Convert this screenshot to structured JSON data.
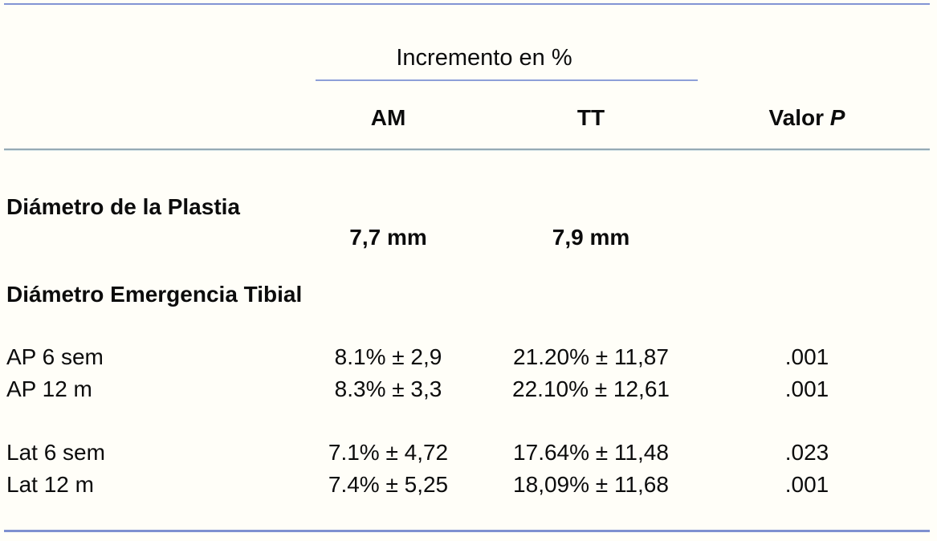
{
  "document": {
    "kind": "journal-table",
    "language": "es"
  },
  "table": {
    "group_header": "Incremento en %",
    "column_headers": {
      "am": "AM",
      "tt": "TT",
      "valor": "Valor",
      "p": "P"
    },
    "rows": [
      {
        "label": "Diámetro de la Plastia",
        "am": "",
        "tt": "",
        "p": ""
      },
      {
        "label": "",
        "am": "7,7 mm",
        "tt": "7,9 mm",
        "p": ""
      },
      {
        "label": "Diámetro Emergencia Tibial",
        "am": "",
        "tt": "",
        "p": ""
      },
      {
        "label": "AP 6 sem",
        "am": "8.1% ± 2,9",
        "tt": "21.20% ± 11,87",
        "p": ".001"
      },
      {
        "label": "AP 12 m",
        "am": "8.3% ± 3,3",
        "tt": "22.10% ± 12,61",
        "p": ".001"
      },
      {
        "label": "Lat 6 sem",
        "am": "7.1% ± 4,72",
        "tt": "17.64% ± 11,48",
        "p": ".023"
      },
      {
        "label": "Lat 12 m",
        "am": "7.4% ± 5,25",
        "tt": "18,09% ± 11,68",
        "p": ".001"
      }
    ]
  },
  "colors": {
    "rule_blue": "#8294d4",
    "divider_steel": "#95aab5",
    "text": "#0c0c0c",
    "background": "#fffef8"
  }
}
